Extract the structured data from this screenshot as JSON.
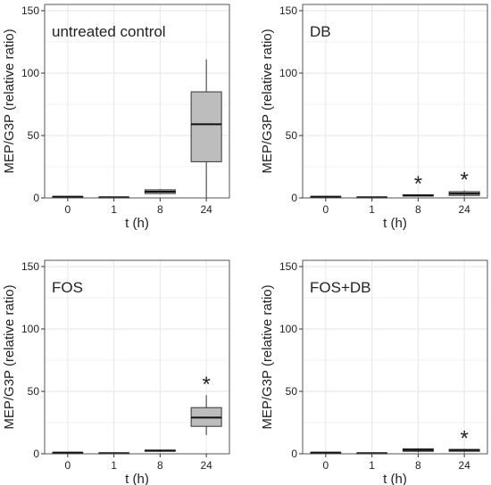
{
  "chart_data": [
    {
      "type": "box",
      "title": "untreated control",
      "xlabel": "t (h)",
      "ylabel": "MEP/G3P (relative ratio)",
      "ylim": [
        0,
        155
      ],
      "yticks": [
        0,
        50,
        100,
        150
      ],
      "categories": [
        "0",
        "1",
        "8",
        "24"
      ],
      "boxes": [
        {
          "min": 1,
          "q1": 1,
          "median": 1,
          "q3": 1,
          "max": 1,
          "significant": false
        },
        {
          "min": 0.5,
          "q1": 0.5,
          "median": 0.5,
          "q3": 0.5,
          "max": 0.5,
          "significant": false
        },
        {
          "min": 3,
          "q1": 3.5,
          "median": 5,
          "q3": 6.5,
          "max": 7,
          "significant": false
        },
        {
          "min": 0,
          "q1": 29,
          "median": 59,
          "q3": 85,
          "max": 111,
          "significant": false
        }
      ],
      "grid": true
    },
    {
      "type": "box",
      "title": "DB",
      "xlabel": "t (h)",
      "ylabel": "MEP/G3P (relative ratio)",
      "ylim": [
        0,
        155
      ],
      "yticks": [
        0,
        50,
        100,
        150
      ],
      "categories": [
        "0",
        "1",
        "8",
        "24"
      ],
      "boxes": [
        {
          "min": 1,
          "q1": 1,
          "median": 1,
          "q3": 1,
          "max": 1,
          "significant": false
        },
        {
          "min": 0.5,
          "q1": 0.5,
          "median": 0.5,
          "q3": 0.5,
          "max": 0.5,
          "significant": false
        },
        {
          "min": 1,
          "q1": 1.5,
          "median": 2,
          "q3": 2.5,
          "max": 3,
          "significant": true
        },
        {
          "min": 1,
          "q1": 2,
          "median": 3.5,
          "q3": 5,
          "max": 6,
          "significant": true
        }
      ],
      "annotation": "*",
      "grid": true
    },
    {
      "type": "box",
      "title": "FOS",
      "xlabel": "t (h)",
      "ylabel": "MEP/G3P (relative ratio)",
      "ylim": [
        0,
        155
      ],
      "yticks": [
        0,
        50,
        100,
        150
      ],
      "categories": [
        "0",
        "1",
        "8",
        "24"
      ],
      "boxes": [
        {
          "min": 1,
          "q1": 1,
          "median": 1,
          "q3": 1,
          "max": 1,
          "significant": false
        },
        {
          "min": 0.5,
          "q1": 0.5,
          "median": 0.5,
          "q3": 0.5,
          "max": 0.5,
          "significant": false
        },
        {
          "min": 1.5,
          "q1": 2,
          "median": 2.5,
          "q3": 3,
          "max": 3.5,
          "significant": false
        },
        {
          "min": 15,
          "q1": 22,
          "median": 29,
          "q3": 37,
          "max": 47,
          "significant": true
        }
      ],
      "annotation": "*",
      "grid": true
    },
    {
      "type": "box",
      "title": "FOS+DB",
      "xlabel": "t (h)",
      "ylabel": "MEP/G3P (relative ratio)",
      "ylim": [
        0,
        155
      ],
      "yticks": [
        0,
        50,
        100,
        150
      ],
      "categories": [
        "0",
        "1",
        "8",
        "24"
      ],
      "boxes": [
        {
          "min": 1,
          "q1": 1,
          "median": 1,
          "q3": 1,
          "max": 1,
          "significant": false
        },
        {
          "min": 0.5,
          "q1": 0.5,
          "median": 0.5,
          "q3": 0.5,
          "max": 0.5,
          "significant": false
        },
        {
          "min": 1,
          "q1": 2,
          "median": 3,
          "q3": 4,
          "max": 4.5,
          "significant": false
        },
        {
          "min": 1,
          "q1": 2,
          "median": 3,
          "q3": 3.5,
          "max": 4,
          "significant": true
        }
      ],
      "annotation": "*",
      "grid": true
    }
  ],
  "colors": {
    "box_fill": "#bdbdbd",
    "box_stroke": "#333333",
    "grid": "#e6e6e6",
    "panel_border": "#555555",
    "text": "#222222"
  }
}
